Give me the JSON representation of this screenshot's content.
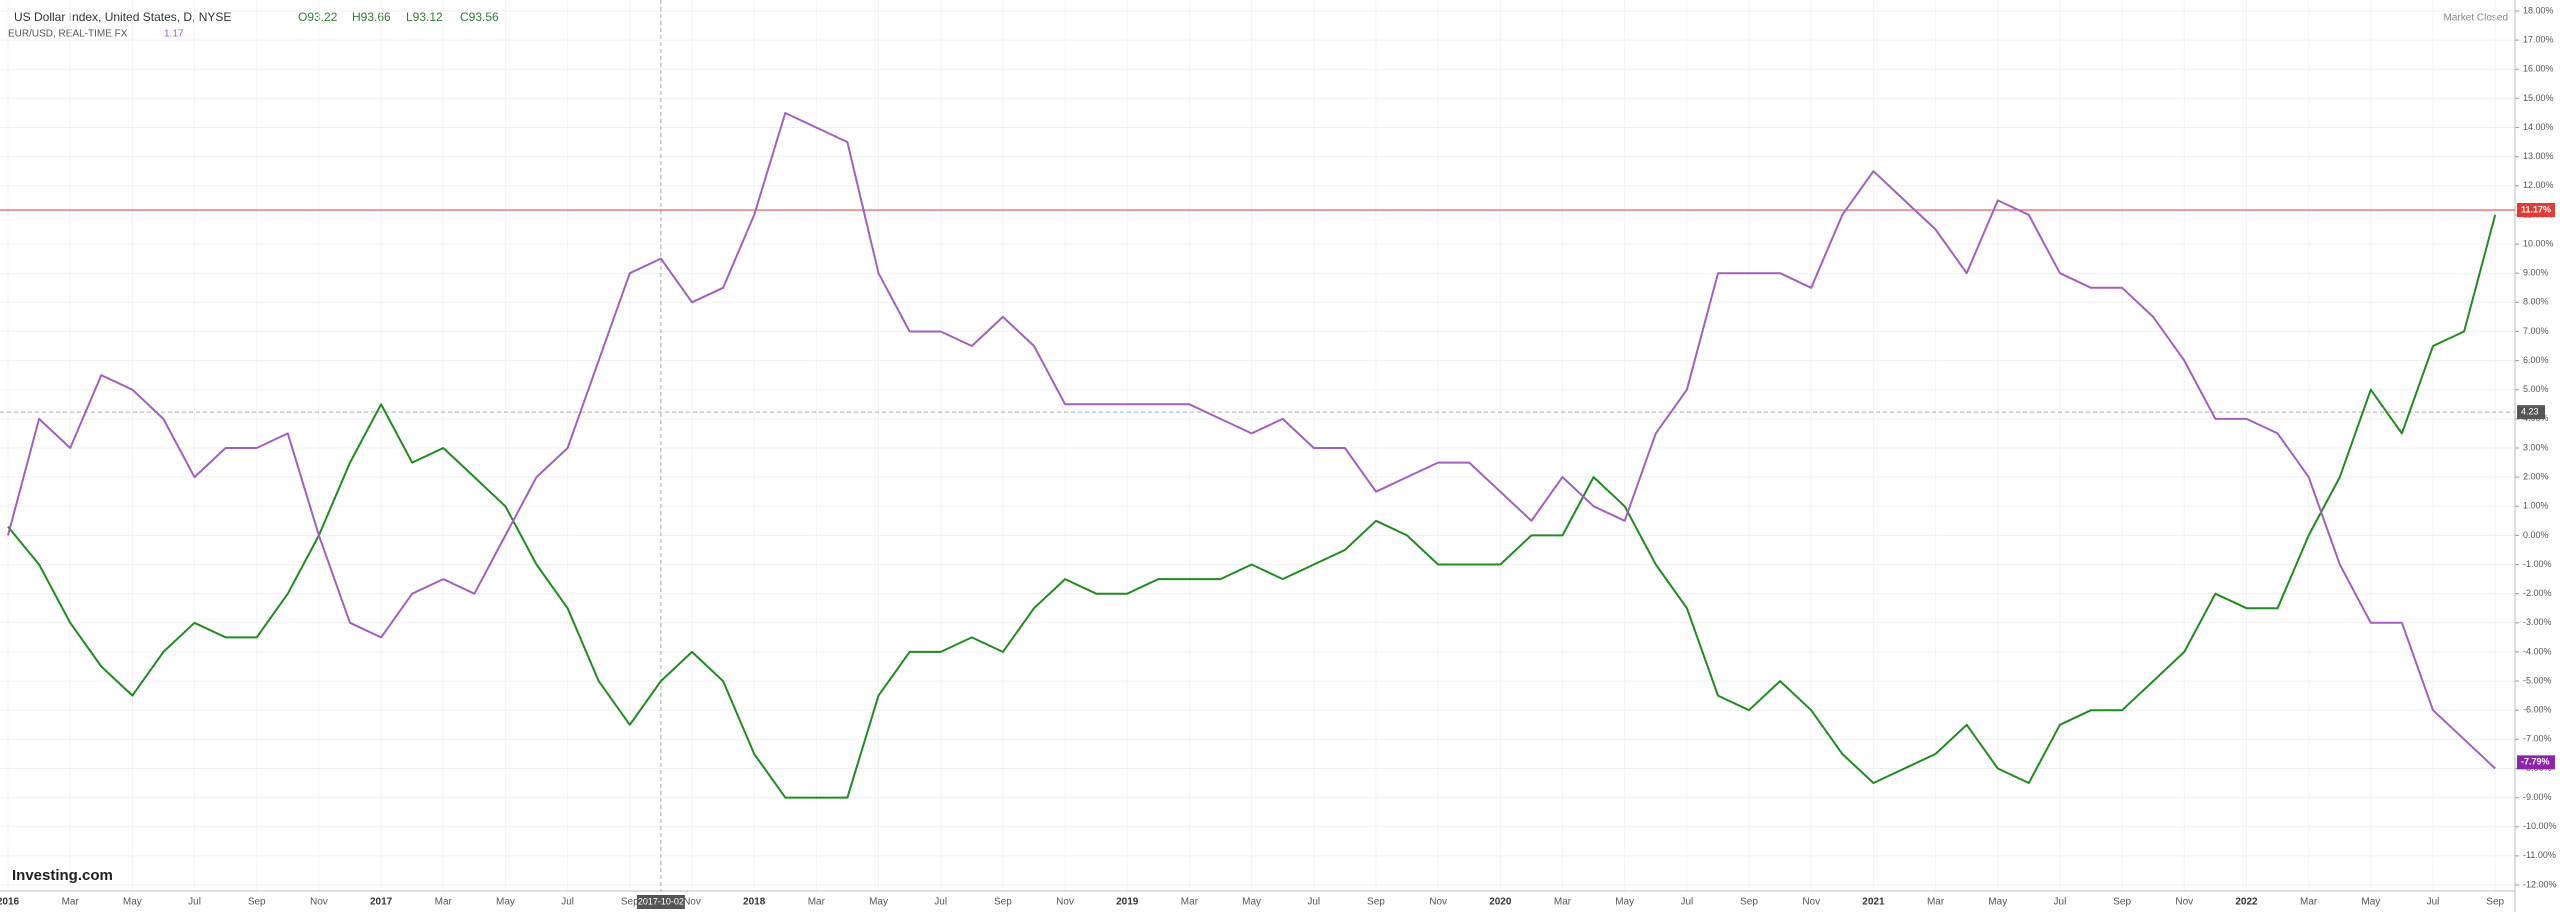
{
  "chart_data": {
    "type": "line",
    "title": "US Dollar Index, United States, D, NYSE",
    "ohlc": [
      "O93.22",
      "H93.66",
      "L93.12",
      "C93.56"
    ],
    "compare_label": "EUR/USD, REAL-TIME FX",
    "compare_value": "1.17",
    "status": "Market Closed",
    "watermark": "Investing.com",
    "categories": [
      "2016",
      null,
      "Mar",
      null,
      "May",
      null,
      "Jul",
      null,
      "Sep",
      null,
      "Nov",
      null,
      "2017",
      null,
      "Mar",
      null,
      "May",
      null,
      "Jul",
      null,
      "Sep",
      null,
      "Nov",
      null,
      "2018",
      null,
      "Mar",
      null,
      "May",
      null,
      "Jul",
      null,
      "Sep",
      null,
      "Nov",
      null,
      "2019",
      null,
      "Mar",
      null,
      "May",
      null,
      "Jul",
      null,
      "Sep",
      null,
      "Nov",
      null,
      "2020",
      null,
      "Mar",
      null,
      "May",
      null,
      "Jul",
      null,
      "Sep",
      null,
      "Nov",
      null,
      "2021",
      null,
      "Mar",
      null,
      "May",
      null,
      "Jul",
      null,
      "Sep",
      null,
      "Nov",
      null,
      "2022",
      null,
      "Mar",
      null,
      "May",
      null,
      "Jul",
      null,
      "Sep"
    ],
    "series": [
      {
        "name": "US Dollar Index",
        "color": "#1e8c1e",
        "values": [
          0.3,
          -1,
          -3,
          -4.5,
          -5.5,
          -4,
          -3,
          -3.5,
          -3.5,
          -2,
          0,
          2.5,
          4.5,
          2.5,
          3,
          2,
          1,
          -1,
          -2.5,
          -5,
          -6.5,
          -5,
          -4,
          -5,
          -7.5,
          -9,
          -9,
          -9,
          -5.5,
          -4,
          -4,
          -3.5,
          -4,
          -2.5,
          -1.5,
          -2,
          -2,
          -1.5,
          -1.5,
          -1.5,
          -1,
          -1.5,
          -1,
          -0.5,
          0.5,
          0,
          -1,
          -1,
          -1,
          0,
          0,
          2,
          1,
          -1,
          -2.5,
          -5.5,
          -6,
          -5,
          -6,
          -7.5,
          -8.5,
          -8,
          -7.5,
          -6.5,
          -8,
          -8.5,
          -6.5,
          -6,
          -6,
          -5,
          -4,
          -2,
          -2.5,
          -2.5,
          0,
          2,
          5,
          3.5,
          6.5,
          7,
          11
        ]
      },
      {
        "name": "EUR/USD",
        "color": "#a25fc0",
        "values": [
          0,
          4,
          3,
          5.5,
          5,
          4,
          2,
          3,
          3,
          3.5,
          0,
          -3,
          -3.5,
          -2,
          -1.5,
          -2,
          0,
          2,
          3,
          6,
          9,
          9.5,
          8,
          8.5,
          11,
          14.5,
          14,
          13.5,
          9,
          7,
          7,
          6.5,
          7.5,
          6.5,
          4.5,
          4.5,
          4.5,
          4.5,
          4.5,
          4,
          3.5,
          4,
          3,
          3,
          1.5,
          2,
          2.5,
          2.5,
          1.5,
          0.5,
          2,
          1,
          0.5,
          3.5,
          5,
          9,
          9,
          9,
          8.5,
          11,
          12.5,
          11.5,
          10.5,
          9,
          11.5,
          11,
          9,
          8.5,
          8.5,
          7.5,
          6,
          4,
          4,
          3.5,
          2,
          -1,
          -3,
          -3,
          -6,
          -7,
          -8
        ]
      }
    ],
    "ylim": [
      -12,
      18
    ],
    "yticks": [
      {
        "value": -12,
        "label": "-12.00%"
      },
      {
        "value": -11,
        "label": "-11.00%"
      },
      {
        "value": -10,
        "label": "-10.00%"
      },
      {
        "value": -9,
        "label": "-9.00%"
      },
      {
        "value": -8,
        "label": "-8.00%"
      },
      {
        "value": -7,
        "label": "-7.00%"
      },
      {
        "value": -6,
        "label": "-6.00%"
      },
      {
        "value": -5,
        "label": "-5.00%"
      },
      {
        "value": -4,
        "label": "-4.00%"
      },
      {
        "value": -3,
        "label": "-3.00%"
      },
      {
        "value": -2,
        "label": "-2.00%"
      },
      {
        "value": -1,
        "label": "-1.00%"
      },
      {
        "value": 0,
        "label": "0.00%"
      },
      {
        "value": 1,
        "label": "1.00%"
      },
      {
        "value": 2,
        "label": "2.00%"
      },
      {
        "value": 3,
        "label": "3.00%"
      },
      {
        "value": 4,
        "label": "4.00%"
      },
      {
        "value": 5,
        "label": "5.00%"
      },
      {
        "value": 6,
        "label": "6.00%"
      },
      {
        "value": 7,
        "label": "7.00%"
      },
      {
        "value": 8,
        "label": "8.00%"
      },
      {
        "value": 9,
        "label": "9.00%"
      },
      {
        "value": 10,
        "label": "10.00%"
      },
      {
        "value": 11,
        "label": "11.00%"
      },
      {
        "value": 12,
        "label": "12.00%"
      },
      {
        "value": 13,
        "label": "13.00%"
      },
      {
        "value": 14,
        "label": "14.00%"
      },
      {
        "value": 15,
        "label": "15.00%"
      },
      {
        "value": 16,
        "label": "16.00%"
      },
      {
        "value": 17,
        "label": "17.00%"
      },
      {
        "value": 18,
        "label": "18.00%"
      }
    ],
    "grid": true,
    "price_lines": [
      {
        "value": 11.17,
        "label": "11.17%",
        "color": "#e53935",
        "line": true
      },
      {
        "value": -7.79,
        "label": "-7.79%",
        "color": "#8e24aa",
        "line": false
      }
    ],
    "crosshair": {
      "x": "2017-10-02",
      "x_index": 21,
      "y": 4.23,
      "y_label": "4.23"
    }
  }
}
